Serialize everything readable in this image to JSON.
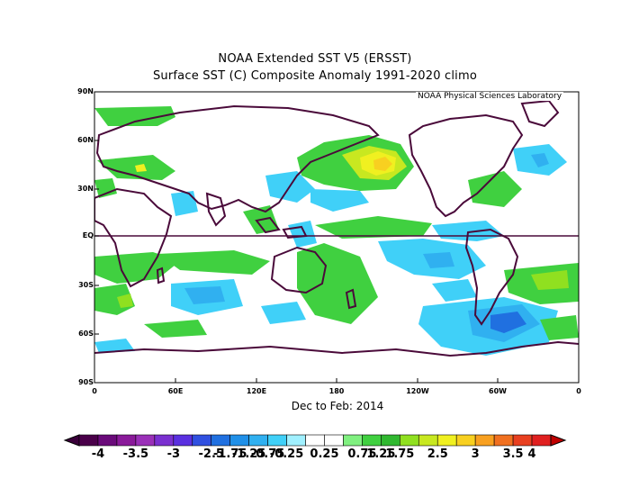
{
  "map": {
    "title_line1": "NOAA Extended SST V5 (ERSST)",
    "title_line2": "Surface SST (C) Composite Anomaly 1991-2020 climo",
    "credit": "NOAA Physical Sciences Laboratory",
    "period_label": "Dec to Feb: 2014",
    "lat_labels": [
      "90N",
      "60N",
      "30N",
      "EQ",
      "30S",
      "60S",
      "90S"
    ],
    "lon_labels": [
      "0",
      "60E",
      "120E",
      "180",
      "120W",
      "60W",
      "0"
    ],
    "land_outline_color": "#4a0a3a",
    "equator_line_color": "#4a0a3a"
  },
  "colorbar": {
    "labels": [
      "-4",
      "-3.5",
      "-3",
      "-2.5",
      "-1.75",
      "-1.25",
      "-0.75",
      "-0.25",
      "0.25",
      "0.75",
      "1.25",
      "1.75",
      "2.5",
      "3",
      "3.5",
      "4"
    ],
    "colors": [
      "#4a004a",
      "#6a0a7a",
      "#8a1a9a",
      "#9a30b8",
      "#7a30d0",
      "#5a30e0",
      "#3050e0",
      "#2070e0",
      "#2090e8",
      "#30b0f0",
      "#40d0f8",
      "#a0f0ff",
      "#ffffff",
      "#ffffff",
      "#80f080",
      "#40d040",
      "#30b830",
      "#90e020",
      "#c8e820",
      "#f0f020",
      "#f8d020",
      "#f8a020",
      "#f07020",
      "#e84020",
      "#e02020"
    ],
    "left_arrow_color": "#3a003a",
    "right_arrow_color": "#c00000"
  }
}
